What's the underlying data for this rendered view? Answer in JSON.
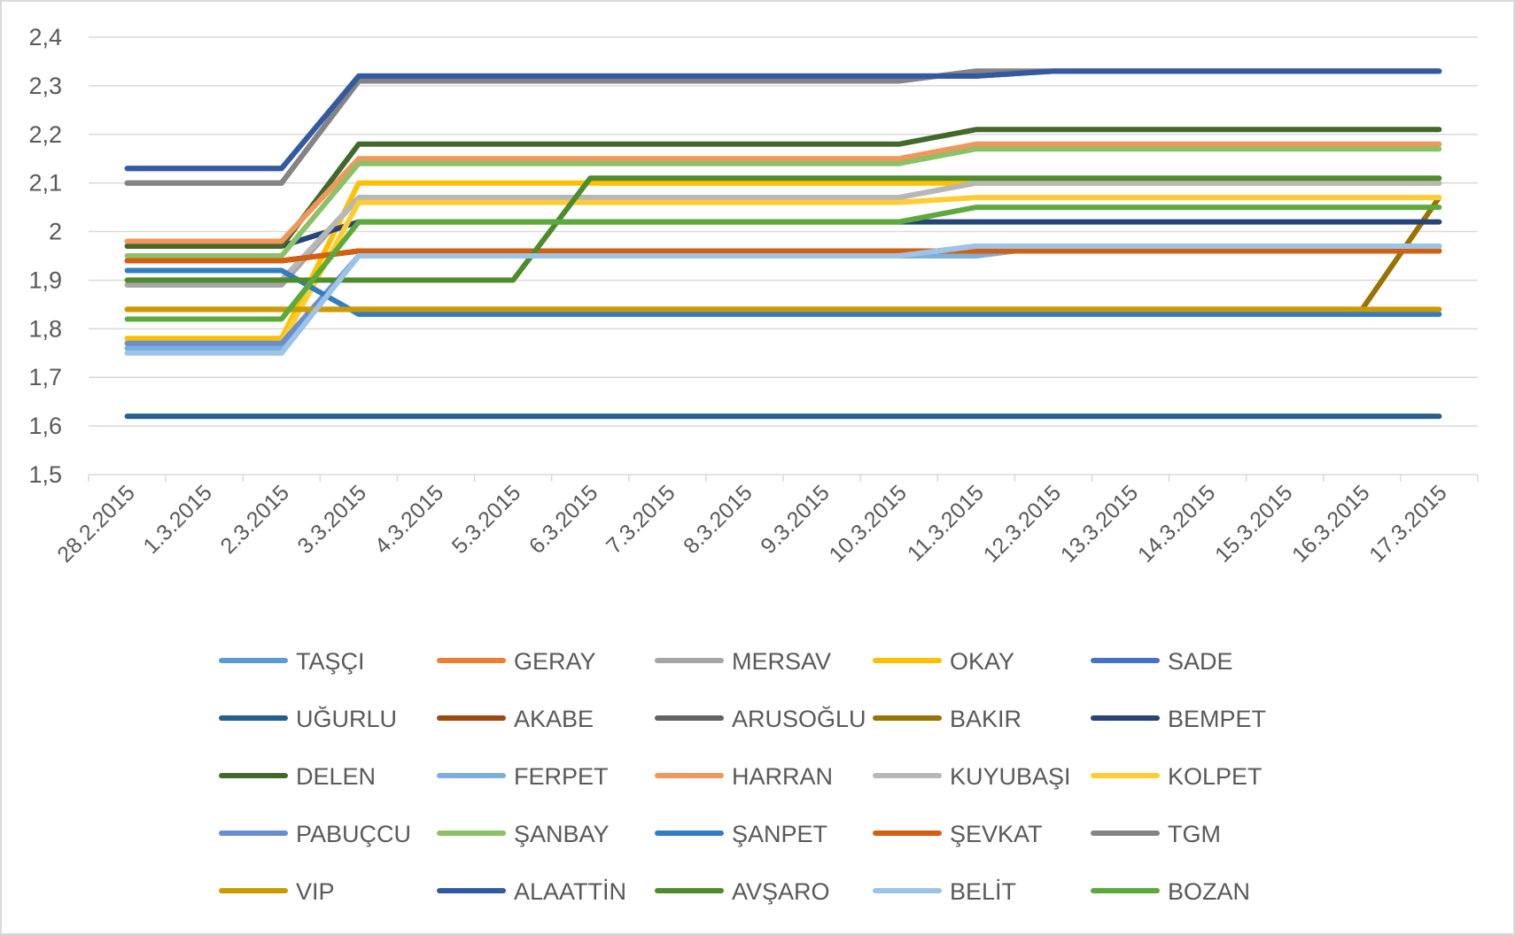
{
  "chart_data": {
    "type": "line",
    "title": "",
    "xlabel": "",
    "ylabel": "",
    "ylim": [
      1.5,
      2.4
    ],
    "grid": true,
    "legend_position": "bottom",
    "y_ticks": [
      "1,5",
      "1,6",
      "1,7",
      "1,8",
      "1,9",
      "2",
      "2,1",
      "2,2",
      "2,3",
      "2,4"
    ],
    "y_tick_values": [
      1.5,
      1.6,
      1.7,
      1.8,
      1.9,
      2.0,
      2.1,
      2.2,
      2.3,
      2.4
    ],
    "categories": [
      "28.2.2015",
      "1.3.2015",
      "2.3.2015",
      "3.3.2015",
      "4.3.2015",
      "5.3.2015",
      "6.3.2015",
      "7.3.2015",
      "8.3.2015",
      "9.3.2015",
      "10.3.2015",
      "11.3.2015",
      "12.3.2015",
      "13.3.2015",
      "14.3.2015",
      "15.3.2015",
      "16.3.2015",
      "17.3.2015"
    ],
    "series": [
      {
        "name": "TAŞÇI",
        "color": "#5B9BD5",
        "values": [
          1.76,
          1.76,
          1.76,
          1.95,
          1.95,
          1.95,
          1.95,
          1.95,
          1.95,
          1.95,
          1.95,
          1.97,
          1.97,
          1.97,
          1.97,
          1.97,
          1.97,
          1.97
        ]
      },
      {
        "name": "GERAY",
        "color": "#ED7D31",
        "values": [
          1.94,
          1.94,
          1.94,
          1.96,
          1.96,
          1.96,
          1.96,
          1.96,
          1.96,
          1.96,
          1.96,
          1.96,
          1.96,
          1.96,
          1.96,
          1.96,
          1.96,
          1.96
        ]
      },
      {
        "name": "MERSAV",
        "color": "#A5A5A5",
        "values": [
          1.89,
          1.89,
          1.89,
          2.07,
          2.07,
          2.07,
          2.07,
          2.07,
          2.07,
          2.07,
          2.07,
          2.1,
          2.1,
          2.1,
          2.1,
          2.1,
          2.1,
          2.1
        ]
      },
      {
        "name": "OKAY",
        "color": "#FFC000",
        "values": [
          1.78,
          1.78,
          1.78,
          2.1,
          2.1,
          2.1,
          2.1,
          2.1,
          2.1,
          2.1,
          2.1,
          2.1,
          2.1,
          2.1,
          2.1,
          2.1,
          2.1,
          2.1
        ]
      },
      {
        "name": "SADE",
        "color": "#4472C4",
        "values": [
          2.13,
          2.13,
          2.13,
          2.32,
          2.32,
          2.32,
          2.32,
          2.32,
          2.32,
          2.32,
          2.32,
          2.32,
          2.33,
          2.33,
          2.33,
          2.33,
          2.33,
          2.33
        ]
      },
      {
        "name": "UĞURLU",
        "color": "#255E91",
        "values": [
          1.62,
          1.62,
          1.62,
          1.62,
          1.62,
          1.62,
          1.62,
          1.62,
          1.62,
          1.62,
          1.62,
          1.62,
          1.62,
          1.62,
          1.62,
          1.62,
          1.62,
          1.62
        ]
      },
      {
        "name": "AKABE",
        "color": "#9E480E",
        "values": [
          1.94,
          1.94,
          1.94,
          1.96,
          1.96,
          1.96,
          1.96,
          1.96,
          1.96,
          1.96,
          1.96,
          1.96,
          1.96,
          1.96,
          1.96,
          1.96,
          1.96,
          1.96
        ]
      },
      {
        "name": "ARUSOĞLU",
        "color": "#636363",
        "values": [
          2.1,
          2.1,
          2.1,
          2.31,
          2.31,
          2.31,
          2.31,
          2.31,
          2.31,
          2.31,
          2.31,
          2.33,
          2.33,
          2.33,
          2.33,
          2.33,
          2.33,
          2.33
        ]
      },
      {
        "name": "BAKIR",
        "color": "#997300",
        "values": [
          1.84,
          1.84,
          1.84,
          1.84,
          1.84,
          1.84,
          1.84,
          1.84,
          1.84,
          1.84,
          1.84,
          1.84,
          1.84,
          1.84,
          1.84,
          1.84,
          1.84,
          2.07
        ]
      },
      {
        "name": "BEMPET",
        "color": "#264478",
        "values": [
          1.97,
          1.97,
          1.97,
          2.02,
          2.02,
          2.02,
          2.02,
          2.02,
          2.02,
          2.02,
          2.02,
          2.02,
          2.02,
          2.02,
          2.02,
          2.02,
          2.02,
          2.02
        ]
      },
      {
        "name": "DELEN",
        "color": "#43682B",
        "values": [
          1.97,
          1.97,
          1.97,
          2.18,
          2.18,
          2.18,
          2.18,
          2.18,
          2.18,
          2.18,
          2.18,
          2.21,
          2.21,
          2.21,
          2.21,
          2.21,
          2.21,
          2.21
        ]
      },
      {
        "name": "FERPET",
        "color": "#7CAFDD",
        "values": [
          1.76,
          1.76,
          1.76,
          1.95,
          1.95,
          1.95,
          1.95,
          1.95,
          1.95,
          1.95,
          1.95,
          1.95,
          1.97,
          1.97,
          1.97,
          1.97,
          1.97,
          1.97
        ]
      },
      {
        "name": "HARRAN",
        "color": "#F1975A",
        "values": [
          1.98,
          1.98,
          1.98,
          2.15,
          2.15,
          2.15,
          2.15,
          2.15,
          2.15,
          2.15,
          2.15,
          2.18,
          2.18,
          2.18,
          2.18,
          2.18,
          2.18,
          2.18
        ]
      },
      {
        "name": "KUYUBAŞI",
        "color": "#B7B7B7",
        "values": [
          1.9,
          1.9,
          1.9,
          2.07,
          2.07,
          2.07,
          2.07,
          2.07,
          2.07,
          2.07,
          2.07,
          2.1,
          2.1,
          2.1,
          2.1,
          2.1,
          2.1,
          2.1
        ]
      },
      {
        "name": "KOLPET",
        "color": "#FFCD33",
        "values": [
          1.77,
          1.77,
          1.77,
          2.06,
          2.06,
          2.06,
          2.06,
          2.06,
          2.06,
          2.06,
          2.06,
          2.07,
          2.07,
          2.07,
          2.07,
          2.07,
          2.07,
          2.07
        ]
      },
      {
        "name": "PABUÇCU",
        "color": "#698ED0",
        "values": [
          1.77,
          1.77,
          1.77,
          1.95,
          1.95,
          1.95,
          1.95,
          1.95,
          1.95,
          1.95,
          1.95,
          1.97,
          1.97,
          1.97,
          1.97,
          1.97,
          1.97,
          1.97
        ]
      },
      {
        "name": "ŞANBAY",
        "color": "#8CC168",
        "values": [
          1.95,
          1.95,
          1.95,
          2.14,
          2.14,
          2.14,
          2.14,
          2.14,
          2.14,
          2.14,
          2.14,
          2.17,
          2.17,
          2.17,
          2.17,
          2.17,
          2.17,
          2.17
        ]
      },
      {
        "name": "ŞANPET",
        "color": "#327DC2",
        "values": [
          1.92,
          1.92,
          1.92,
          1.83,
          1.83,
          1.83,
          1.83,
          1.83,
          1.83,
          1.83,
          1.83,
          1.83,
          1.83,
          1.83,
          1.83,
          1.83,
          1.83,
          1.83
        ]
      },
      {
        "name": "ŞEVKAT",
        "color": "#D26012",
        "values": [
          1.94,
          1.94,
          1.94,
          1.96,
          1.96,
          1.96,
          1.96,
          1.96,
          1.96,
          1.96,
          1.96,
          1.96,
          1.96,
          1.96,
          1.96,
          1.96,
          1.96,
          1.96
        ]
      },
      {
        "name": "TGM",
        "color": "#848484",
        "values": [
          2.1,
          2.1,
          2.1,
          2.31,
          2.31,
          2.31,
          2.31,
          2.31,
          2.31,
          2.31,
          2.31,
          2.33,
          2.33,
          2.33,
          2.33,
          2.33,
          2.33,
          2.33
        ]
      },
      {
        "name": "VIP",
        "color": "#CC9A00",
        "values": [
          1.84,
          1.84,
          1.84,
          1.84,
          1.84,
          1.84,
          1.84,
          1.84,
          1.84,
          1.84,
          1.84,
          1.84,
          1.84,
          1.84,
          1.84,
          1.84,
          1.84,
          1.84
        ]
      },
      {
        "name": "ALAATTİN",
        "color": "#335AA1",
        "values": [
          2.13,
          2.13,
          2.13,
          2.32,
          2.32,
          2.32,
          2.32,
          2.32,
          2.32,
          2.32,
          2.32,
          2.32,
          2.33,
          2.33,
          2.33,
          2.33,
          2.33,
          2.33
        ]
      },
      {
        "name": "AVŞARO",
        "color": "#4E8B2C",
        "values": [
          1.9,
          1.9,
          1.9,
          1.9,
          1.9,
          1.9,
          2.11,
          2.11,
          2.11,
          2.11,
          2.11,
          2.11,
          2.11,
          2.11,
          2.11,
          2.11,
          2.11,
          2.11
        ]
      },
      {
        "name": "BELİT",
        "color": "#9DC3E6",
        "values": [
          1.75,
          1.75,
          1.75,
          1.95,
          1.95,
          1.95,
          1.95,
          1.95,
          1.95,
          1.95,
          1.95,
          1.97,
          1.97,
          1.97,
          1.97,
          1.97,
          1.97,
          1.97
        ]
      },
      {
        "name": "BOZAN",
        "color": "#5DAA3C",
        "values": [
          1.82,
          1.82,
          1.82,
          2.02,
          2.02,
          2.02,
          2.02,
          2.02,
          2.02,
          2.02,
          2.02,
          2.05,
          2.05,
          2.05,
          2.05,
          2.05,
          2.05,
          2.05
        ]
      }
    ]
  }
}
